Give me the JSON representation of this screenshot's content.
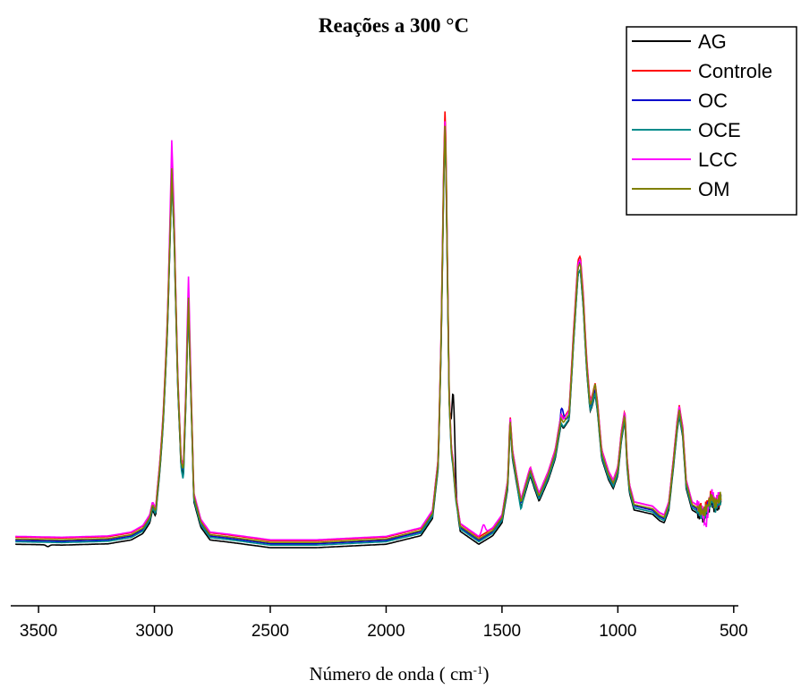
{
  "chart_data": {
    "type": "line",
    "title": "Reações a 300 °C",
    "xlabel_main": "Número de onda ( cm",
    "xlabel_sup": "-1",
    "xlabel_end": ")",
    "ylabel": "",
    "xlim": [
      3620,
      480
    ],
    "ylim": [
      -0.05,
      1.0
    ],
    "x_reversed": true,
    "y_axis_visible": false,
    "x_ticks": [
      3500,
      3000,
      2500,
      2000,
      1500,
      1000,
      500
    ],
    "x_tick_labels": [
      "3500",
      "3000",
      "2500",
      "2000",
      "1500",
      "1000",
      "500"
    ],
    "grid": false,
    "legend_position": "top-right",
    "base_spectrum": [
      [
        3600,
        0.02
      ],
      [
        3400,
        0.018
      ],
      [
        3200,
        0.021
      ],
      [
        3100,
        0.03
      ],
      [
        3050,
        0.045
      ],
      [
        3020,
        0.07
      ],
      [
        3008,
        0.1
      ],
      [
        2995,
        0.085
      ],
      [
        2975,
        0.2
      ],
      [
        2962,
        0.3
      ],
      [
        2945,
        0.5
      ],
      [
        2935,
        0.68
      ],
      [
        2925,
        0.88
      ],
      [
        2915,
        0.74
      ],
      [
        2900,
        0.4
      ],
      [
        2885,
        0.2
      ],
      [
        2875,
        0.18
      ],
      [
        2865,
        0.34
      ],
      [
        2853,
        0.58
      ],
      [
        2845,
        0.42
      ],
      [
        2830,
        0.12
      ],
      [
        2800,
        0.06
      ],
      [
        2760,
        0.03
      ],
      [
        2680,
        0.025
      ],
      [
        2500,
        0.012
      ],
      [
        2300,
        0.012
      ],
      [
        2000,
        0.02
      ],
      [
        1850,
        0.04
      ],
      [
        1800,
        0.08
      ],
      [
        1775,
        0.2
      ],
      [
        1762,
        0.5
      ],
      [
        1752,
        0.85
      ],
      [
        1745,
        1.0
      ],
      [
        1738,
        0.75
      ],
      [
        1728,
        0.35
      ],
      [
        1718,
        0.22
      ],
      [
        1712,
        0.2
      ],
      [
        1700,
        0.12
      ],
      [
        1680,
        0.05
      ],
      [
        1600,
        0.02
      ],
      [
        1540,
        0.04
      ],
      [
        1500,
        0.07
      ],
      [
        1475,
        0.15
      ],
      [
        1465,
        0.3
      ],
      [
        1455,
        0.22
      ],
      [
        1430,
        0.14
      ],
      [
        1418,
        0.105
      ],
      [
        1405,
        0.13
      ],
      [
        1378,
        0.18
      ],
      [
        1360,
        0.15
      ],
      [
        1340,
        0.12
      ],
      [
        1300,
        0.17
      ],
      [
        1270,
        0.22
      ],
      [
        1245,
        0.3
      ],
      [
        1235,
        0.29
      ],
      [
        1210,
        0.31
      ],
      [
        1190,
        0.5
      ],
      [
        1172,
        0.65
      ],
      [
        1162,
        0.66
      ],
      [
        1150,
        0.58
      ],
      [
        1135,
        0.43
      ],
      [
        1120,
        0.33
      ],
      [
        1112,
        0.34
      ],
      [
        1098,
        0.37
      ],
      [
        1088,
        0.33
      ],
      [
        1070,
        0.22
      ],
      [
        1040,
        0.17
      ],
      [
        1020,
        0.15
      ],
      [
        1000,
        0.18
      ],
      [
        985,
        0.26
      ],
      [
        970,
        0.31
      ],
      [
        960,
        0.2
      ],
      [
        950,
        0.14
      ],
      [
        930,
        0.1
      ],
      [
        890,
        0.095
      ],
      [
        850,
        0.09
      ],
      [
        820,
        0.075
      ],
      [
        800,
        0.07
      ],
      [
        780,
        0.1
      ],
      [
        760,
        0.2
      ],
      [
        745,
        0.28
      ],
      [
        735,
        0.32
      ],
      [
        720,
        0.27
      ],
      [
        705,
        0.15
      ],
      [
        680,
        0.1
      ],
      [
        650,
        0.09
      ],
      [
        630,
        0.08
      ],
      [
        610,
        0.1
      ],
      [
        595,
        0.12
      ],
      [
        580,
        0.1
      ],
      [
        555,
        0.12
      ]
    ],
    "series": [
      {
        "name": "AG",
        "color": "#000000",
        "scale": 0.99,
        "offset": -0.012,
        "region_tweaks": [
          [
            1710,
            0.18
          ],
          [
            3460,
            -0.004
          ]
        ]
      },
      {
        "name": "Controle",
        "color": "#ff0000",
        "scale": 1.015,
        "offset": 0.004,
        "region_tweaks": [
          [
            1745,
            0.01
          ],
          [
            565,
            -0.02
          ]
        ]
      },
      {
        "name": "OC",
        "color": "#0000cc",
        "scale": 0.995,
        "offset": -0.003,
        "region_tweaks": [
          [
            1240,
            0.03
          ],
          [
            1162,
            0.01
          ]
        ]
      },
      {
        "name": "OCE",
        "color": "#008b8b",
        "scale": 0.98,
        "offset": -0.006,
        "region_tweaks": [
          [
            2875,
            -0.015
          ],
          [
            1420,
            -0.01
          ]
        ]
      },
      {
        "name": "LCC",
        "color": "#ff00ff",
        "scale": 1.0,
        "offset": 0.006,
        "region_tweaks": [
          [
            2925,
            0.055
          ],
          [
            2853,
            0.04
          ],
          [
            1580,
            0.02
          ],
          [
            620,
            -0.045
          ]
        ]
      },
      {
        "name": "OM",
        "color": "#808000",
        "scale": 0.995,
        "offset": 0.0,
        "region_tweaks": [
          [
            1100,
            0.01
          ]
        ]
      }
    ]
  }
}
